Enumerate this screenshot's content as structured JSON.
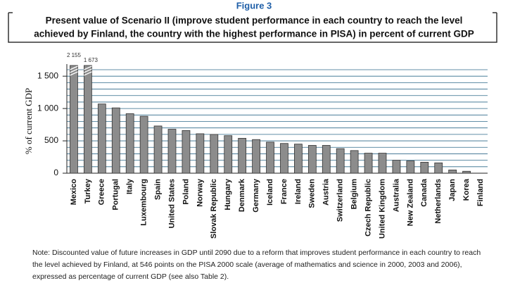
{
  "chart_data": {
    "type": "bar",
    "figure_label": "Figure 3",
    "title": [
      "Present value of Scenario II (improve student performance in each country to reach the level",
      "achieved by Finland, the country with the highest performance in PISA) in percent of current GDP"
    ],
    "y_label": "% of current GDP",
    "categories": [
      "Mexico",
      "Turkey",
      "Greece",
      "Portugal",
      "Italy",
      "Luxembourg",
      "Spain",
      "United States",
      "Poland",
      "Norway",
      "Slovak Republic",
      "Hungary",
      "Denmark",
      "Germany",
      "Iceland",
      "France",
      "Ireland",
      "Sweden",
      "Austria",
      "Switzerland",
      "Belgium",
      "Czech Republic",
      "United Kingdom",
      "Australia",
      "New Zealand",
      "Canada",
      "Netherlands",
      "Japan",
      "Korea",
      "Finland"
    ],
    "values": [
      2155,
      1673,
      1070,
      1010,
      920,
      880,
      730,
      680,
      660,
      610,
      600,
      580,
      540,
      520,
      480,
      460,
      450,
      430,
      430,
      380,
      350,
      310,
      310,
      200,
      190,
      170,
      160,
      50,
      30,
      0
    ],
    "value_labels": [
      "2 155",
      "1 673",
      null,
      null,
      null,
      null,
      null,
      null,
      null,
      null,
      null,
      null,
      null,
      null,
      null,
      null,
      null,
      null,
      null,
      null,
      null,
      null,
      null,
      null,
      null,
      null,
      null,
      null,
      null,
      null
    ],
    "color": "#8c8c8c",
    "ylim": [
      0,
      1600
    ],
    "yticks": [
      0,
      500,
      {
        "value": 1000,
        "label": "1 000"
      },
      {
        "value": 1500,
        "label": "1 500"
      }
    ],
    "minor_yticks": [
      100,
      200,
      300,
      400,
      600,
      700,
      800,
      900,
      1100,
      1200,
      1300,
      1400,
      1600
    ],
    "grid": true,
    "note": "Note:  Discounted value of future increases in GDP until 2090 due to a reform that improves student performance in each country to reach the level achieved by Finland, at 546 points on the PISA 2000 scale (average of mathematics and science in 2000, 2003 and 2006), expressed as percentage of current GDP (see also Table 2)."
  }
}
